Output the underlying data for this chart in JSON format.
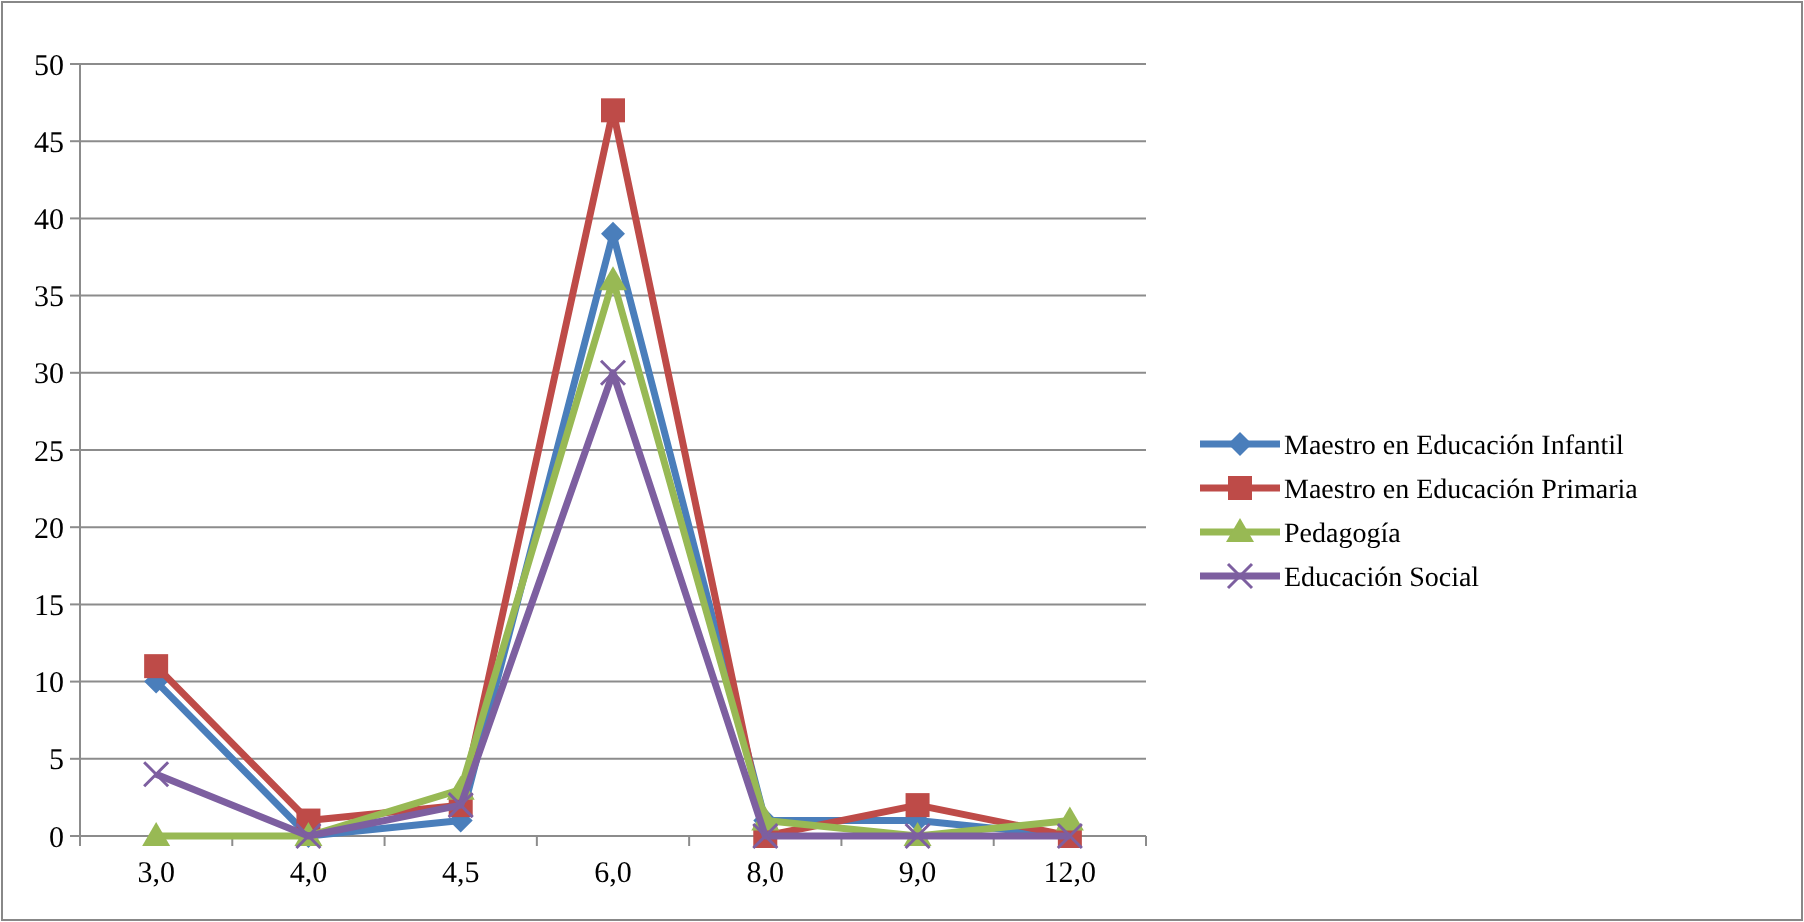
{
  "chart_data": {
    "type": "line",
    "categories": [
      "3,0",
      "4,0",
      "4,5",
      "6,0",
      "8,0",
      "9,0",
      "12,0"
    ],
    "series": [
      {
        "name": "Maestro en Educación Infantil",
        "color": "#4a7ebb",
        "marker": "diamond",
        "values": [
          10,
          0,
          1,
          39,
          1,
          1,
          0
        ]
      },
      {
        "name": "Maestro en Educación Primaria",
        "color": "#be4b48",
        "marker": "square",
        "values": [
          11,
          1,
          2,
          47,
          0,
          2,
          0
        ]
      },
      {
        "name": "Pedagogía",
        "color": "#98b954",
        "marker": "triangle",
        "values": [
          0,
          0,
          3,
          36,
          1,
          0,
          1
        ]
      },
      {
        "name": "Educación Social",
        "color": "#7d5fa0",
        "marker": "cross",
        "values": [
          4,
          0,
          2,
          30,
          0,
          0,
          0
        ]
      }
    ],
    "ylim": [
      0,
      50
    ],
    "yticks": [
      0,
      5,
      10,
      15,
      20,
      25,
      30,
      35,
      40,
      45,
      50
    ],
    "grid": "y",
    "legend": "right"
  }
}
